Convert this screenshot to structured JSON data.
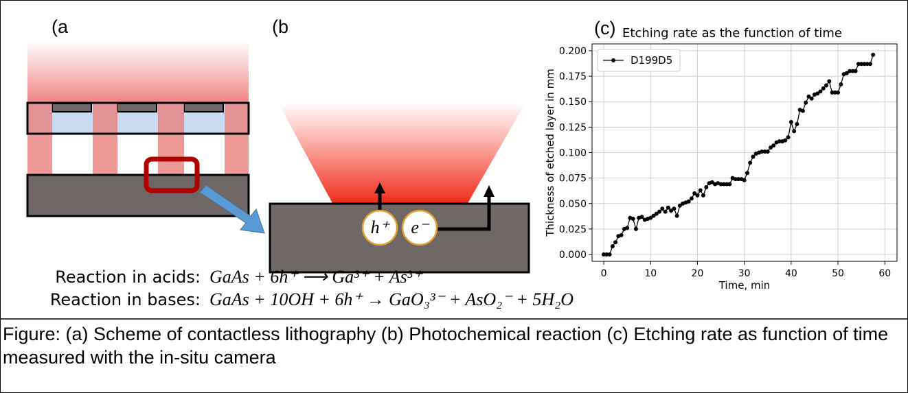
{
  "panel_labels": [
    "(a",
    "(b",
    "(c)"
  ],
  "carriers": [
    "h⁺",
    "e⁻"
  ],
  "reactions": [
    {
      "label": "Reaction in acids:",
      "equation": "GaAs + 6h⁺ ⟶ Ga³⁺ + As³⁺"
    },
    {
      "label": "Reaction in bases:",
      "equation": "GaAs + 10OH + 6h⁺ → GaO₃³⁻ + AsO₂⁻ + 5H₂O"
    }
  ],
  "caption": "Figure: (a) Scheme of contactless lithography (b) Photochemical reaction (c) Etching rate as function of time measured with the in-situ camera",
  "chart_data": {
    "type": "line",
    "title": "Etching rate as the function of time",
    "x_label": "Time, min",
    "y_label": "Thickness of etched layer in mm",
    "x": [
      0,
      0.625,
      1.25,
      1.875,
      2.5,
      3.125,
      3.75,
      4.375,
      5,
      5.625,
      6.25,
      6.875,
      7.5,
      8.125,
      8.75,
      9.375,
      10,
      10.625,
      11.25,
      11.875,
      12.5,
      13.125,
      13.75,
      14.375,
      15,
      15.625,
      16.25,
      16.875,
      17.5,
      18.125,
      18.75,
      19.375,
      20,
      20.625,
      21.25,
      21.875,
      22.5,
      23.125,
      23.75,
      24.375,
      25,
      25.625,
      26.25,
      26.875,
      27.5,
      28.125,
      28.75,
      29.375,
      30,
      30.625,
      31.25,
      31.875,
      32.5,
      33.125,
      33.75,
      34.375,
      35,
      35.625,
      36.25,
      36.875,
      37.5,
      38.125,
      38.75,
      39.375,
      40,
      40.625,
      41.25,
      41.875,
      42.5,
      43.125,
      43.75,
      44.375,
      45,
      45.625,
      46.25,
      46.875,
      47.5,
      48.125,
      48.75,
      49.375,
      50,
      50.625,
      51.25,
      51.875,
      52.5,
      53.125,
      53.75,
      54.375,
      55,
      55.625,
      56.25,
      56.875,
      57.5
    ],
    "series": [
      {
        "name": "D199D5",
        "color": "#000000",
        "values": [
          0,
          0,
          0,
          0.008,
          0.012,
          0.018,
          0.019,
          0.025,
          0.026,
          0.036,
          0.035,
          0.025,
          0.036,
          0.037,
          0.034,
          0.035,
          0.036,
          0.038,
          0.04,
          0.042,
          0.045,
          0.042,
          0.046,
          0.043,
          0.045,
          0.038,
          0.048,
          0.05,
          0.051,
          0.052,
          0.055,
          0.06,
          0.058,
          0.063,
          0.058,
          0.066,
          0.07,
          0.071,
          0.069,
          0.07,
          0.069,
          0.069,
          0.069,
          0.069,
          0.075,
          0.074,
          0.074,
          0.074,
          0.073,
          0.08,
          0.09,
          0.096,
          0.099,
          0.1,
          0.101,
          0.101,
          0.101,
          0.105,
          0.107,
          0.11,
          0.111,
          0.111,
          0.112,
          0.115,
          0.13,
          0.121,
          0.128,
          0.142,
          0.141,
          0.149,
          0.155,
          0.153,
          0.157,
          0.158,
          0.16,
          0.163,
          0.166,
          0.17,
          0.159,
          0.159,
          0.159,
          0.167,
          0.177,
          0.178,
          0.18,
          0.18,
          0.18,
          0.187,
          0.187,
          0.187,
          0.187,
          0.187,
          0.196
        ]
      }
    ],
    "xlim": [
      -2.5,
      62.6
    ],
    "ylim": [
      -0.0067,
      0.2067
    ],
    "xticks": [
      0,
      10,
      20,
      30,
      40,
      50,
      60
    ],
    "yticks": [
      {
        "value": 0,
        "label": "0.000"
      },
      {
        "value": 0.025,
        "label": "0.025"
      },
      {
        "value": 0.05,
        "label": "0.050"
      },
      {
        "value": 0.075,
        "label": "0.075"
      },
      {
        "value": 0.1,
        "label": "0.100"
      },
      {
        "value": 0.125,
        "label": "0.125"
      },
      {
        "value": 0.15,
        "label": "0.150"
      },
      {
        "value": 0.175,
        "label": "0.175"
      },
      {
        "value": 0.2,
        "label": "0.200"
      }
    ],
    "grid": true,
    "legend": "upper left",
    "markers": true
  }
}
